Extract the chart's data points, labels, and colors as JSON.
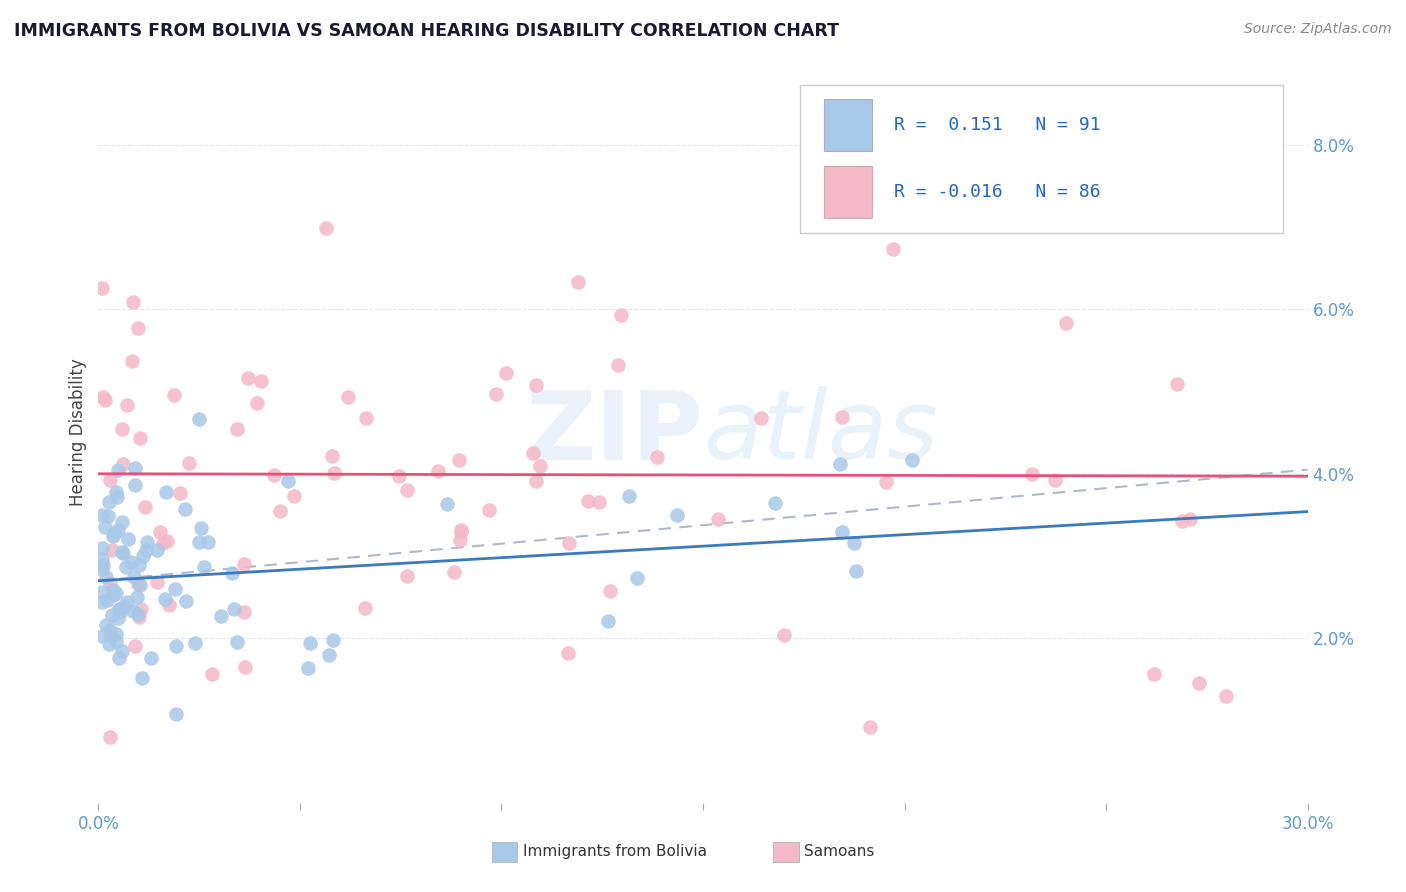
{
  "title": "IMMIGRANTS FROM BOLIVIA VS SAMOAN HEARING DISABILITY CORRELATION CHART",
  "source": "Source: ZipAtlas.com",
  "ylabel": "Hearing Disability",
  "xlim": [
    0.0,
    0.3
  ],
  "ylim": [
    0.0,
    0.09
  ],
  "R_bolivia": 0.151,
  "N_bolivia": 91,
  "R_samoan": -0.016,
  "N_samoan": 86,
  "bolivia_color": "#a8c8e8",
  "samoan_color": "#f5b8c8",
  "bolivia_line_color": "#3a7abf",
  "samoan_line_color": "#e8507a",
  "dash_line_color": "#b0b8c8",
  "background_color": "#ffffff",
  "grid_color": "#dde5f0",
  "watermark": "ZIPatlas",
  "title_color": "#1a1a2e",
  "source_color": "#888888",
  "axis_color": "#5b9bd5",
  "label_color": "#444444",
  "legend_text_color": "#222222",
  "legend_value_color": "#2266cc",
  "bolivia_trend_intercept": 0.027,
  "bolivia_trend_slope": 0.028,
  "samoan_trend_intercept": 0.04,
  "samoan_trend_slope": -0.001,
  "dash_trend_intercept": 0.027,
  "dash_trend_slope": 0.045
}
